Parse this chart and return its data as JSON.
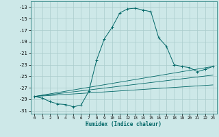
{
  "xlabel": "Humidex (Indice chaleur)",
  "bg_color": "#cde8e8",
  "grid_color": "#aacccc",
  "line_color": "#006666",
  "xlim": [
    -0.5,
    23.5
  ],
  "ylim": [
    -31.5,
    -12.0
  ],
  "yticks": [
    -13,
    -15,
    -17,
    -19,
    -21,
    -23,
    -25,
    -27,
    -29,
    -31
  ],
  "xticks": [
    0,
    1,
    2,
    3,
    4,
    5,
    6,
    7,
    8,
    9,
    10,
    11,
    12,
    13,
    14,
    15,
    16,
    17,
    18,
    19,
    20,
    21,
    22,
    23
  ],
  "series": [
    [
      0,
      -28.5
    ],
    [
      1,
      -28.8
    ],
    [
      2,
      -29.4
    ],
    [
      3,
      -29.8
    ],
    [
      4,
      -29.9
    ],
    [
      5,
      -30.3
    ],
    [
      6,
      -30.0
    ],
    [
      7,
      -27.6
    ],
    [
      8,
      -22.2
    ],
    [
      9,
      -18.5
    ],
    [
      10,
      -16.5
    ],
    [
      11,
      -14.0
    ],
    [
      12,
      -13.3
    ],
    [
      13,
      -13.2
    ],
    [
      14,
      -13.5
    ],
    [
      15,
      -13.8
    ],
    [
      16,
      -18.3
    ],
    [
      17,
      -19.8
    ],
    [
      18,
      -23.0
    ],
    [
      19,
      -23.3
    ],
    [
      20,
      -23.5
    ],
    [
      21,
      -24.2
    ],
    [
      22,
      -23.8
    ],
    [
      23,
      -23.3
    ]
  ],
  "extra_lines": [
    [
      [
        0,
        -28.5
      ],
      [
        23,
        -23.3
      ]
    ],
    [
      [
        0,
        -28.5
      ],
      [
        23,
        -24.8
      ]
    ],
    [
      [
        0,
        -28.5
      ],
      [
        23,
        -26.5
      ]
    ]
  ]
}
